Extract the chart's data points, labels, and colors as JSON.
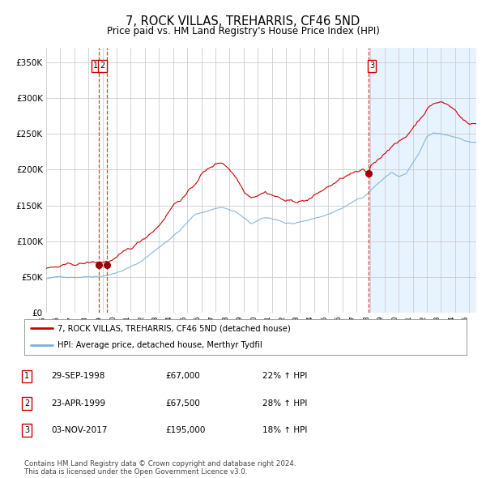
{
  "title": "7, ROCK VILLAS, TREHARRIS, CF46 5ND",
  "subtitle": "Price paid vs. HM Land Registry's House Price Index (HPI)",
  "title_fontsize": 10.5,
  "subtitle_fontsize": 8.5,
  "ylim": [
    0,
    370000
  ],
  "xlim_start": 1995.0,
  "xlim_end": 2025.5,
  "red_line_color": "#cc0000",
  "blue_line_color": "#7bafd4",
  "background_color": "#ffffff",
  "shade_color": "#ddeeff",
  "grid_color": "#cccccc",
  "sale_dates": [
    1998.747,
    1999.31,
    2017.84
  ],
  "sale_prices": [
    67000,
    67500,
    195000
  ],
  "sale_labels": [
    "1",
    "2",
    "3"
  ],
  "vline_color": "#cc0000",
  "dot_color": "#990000",
  "legend_red_label": "7, ROCK VILLAS, TREHARRIS, CF46 5ND (detached house)",
  "legend_blue_label": "HPI: Average price, detached house, Merthyr Tydfil",
  "table_data": [
    [
      "1",
      "29-SEP-1998",
      "£67,000",
      "22% ↑ HPI"
    ],
    [
      "2",
      "23-APR-1999",
      "£67,500",
      "28% ↑ HPI"
    ],
    [
      "3",
      "03-NOV-2017",
      "£195,000",
      "18% ↑ HPI"
    ]
  ],
  "footer": "Contains HM Land Registry data © Crown copyright and database right 2024.\nThis data is licensed under the Open Government Licence v3.0.",
  "ytick_labels": [
    "£0",
    "£50K",
    "£100K",
    "£150K",
    "£200K",
    "£250K",
    "£300K",
    "£350K"
  ],
  "ytick_values": [
    0,
    50000,
    100000,
    150000,
    200000,
    250000,
    300000,
    350000
  ],
  "xtick_years": [
    1995,
    1996,
    1997,
    1998,
    1999,
    2000,
    2001,
    2002,
    2003,
    2004,
    2005,
    2006,
    2007,
    2008,
    2009,
    2010,
    2011,
    2012,
    2013,
    2014,
    2015,
    2016,
    2017,
    2018,
    2019,
    2020,
    2021,
    2022,
    2023,
    2024,
    2025
  ]
}
